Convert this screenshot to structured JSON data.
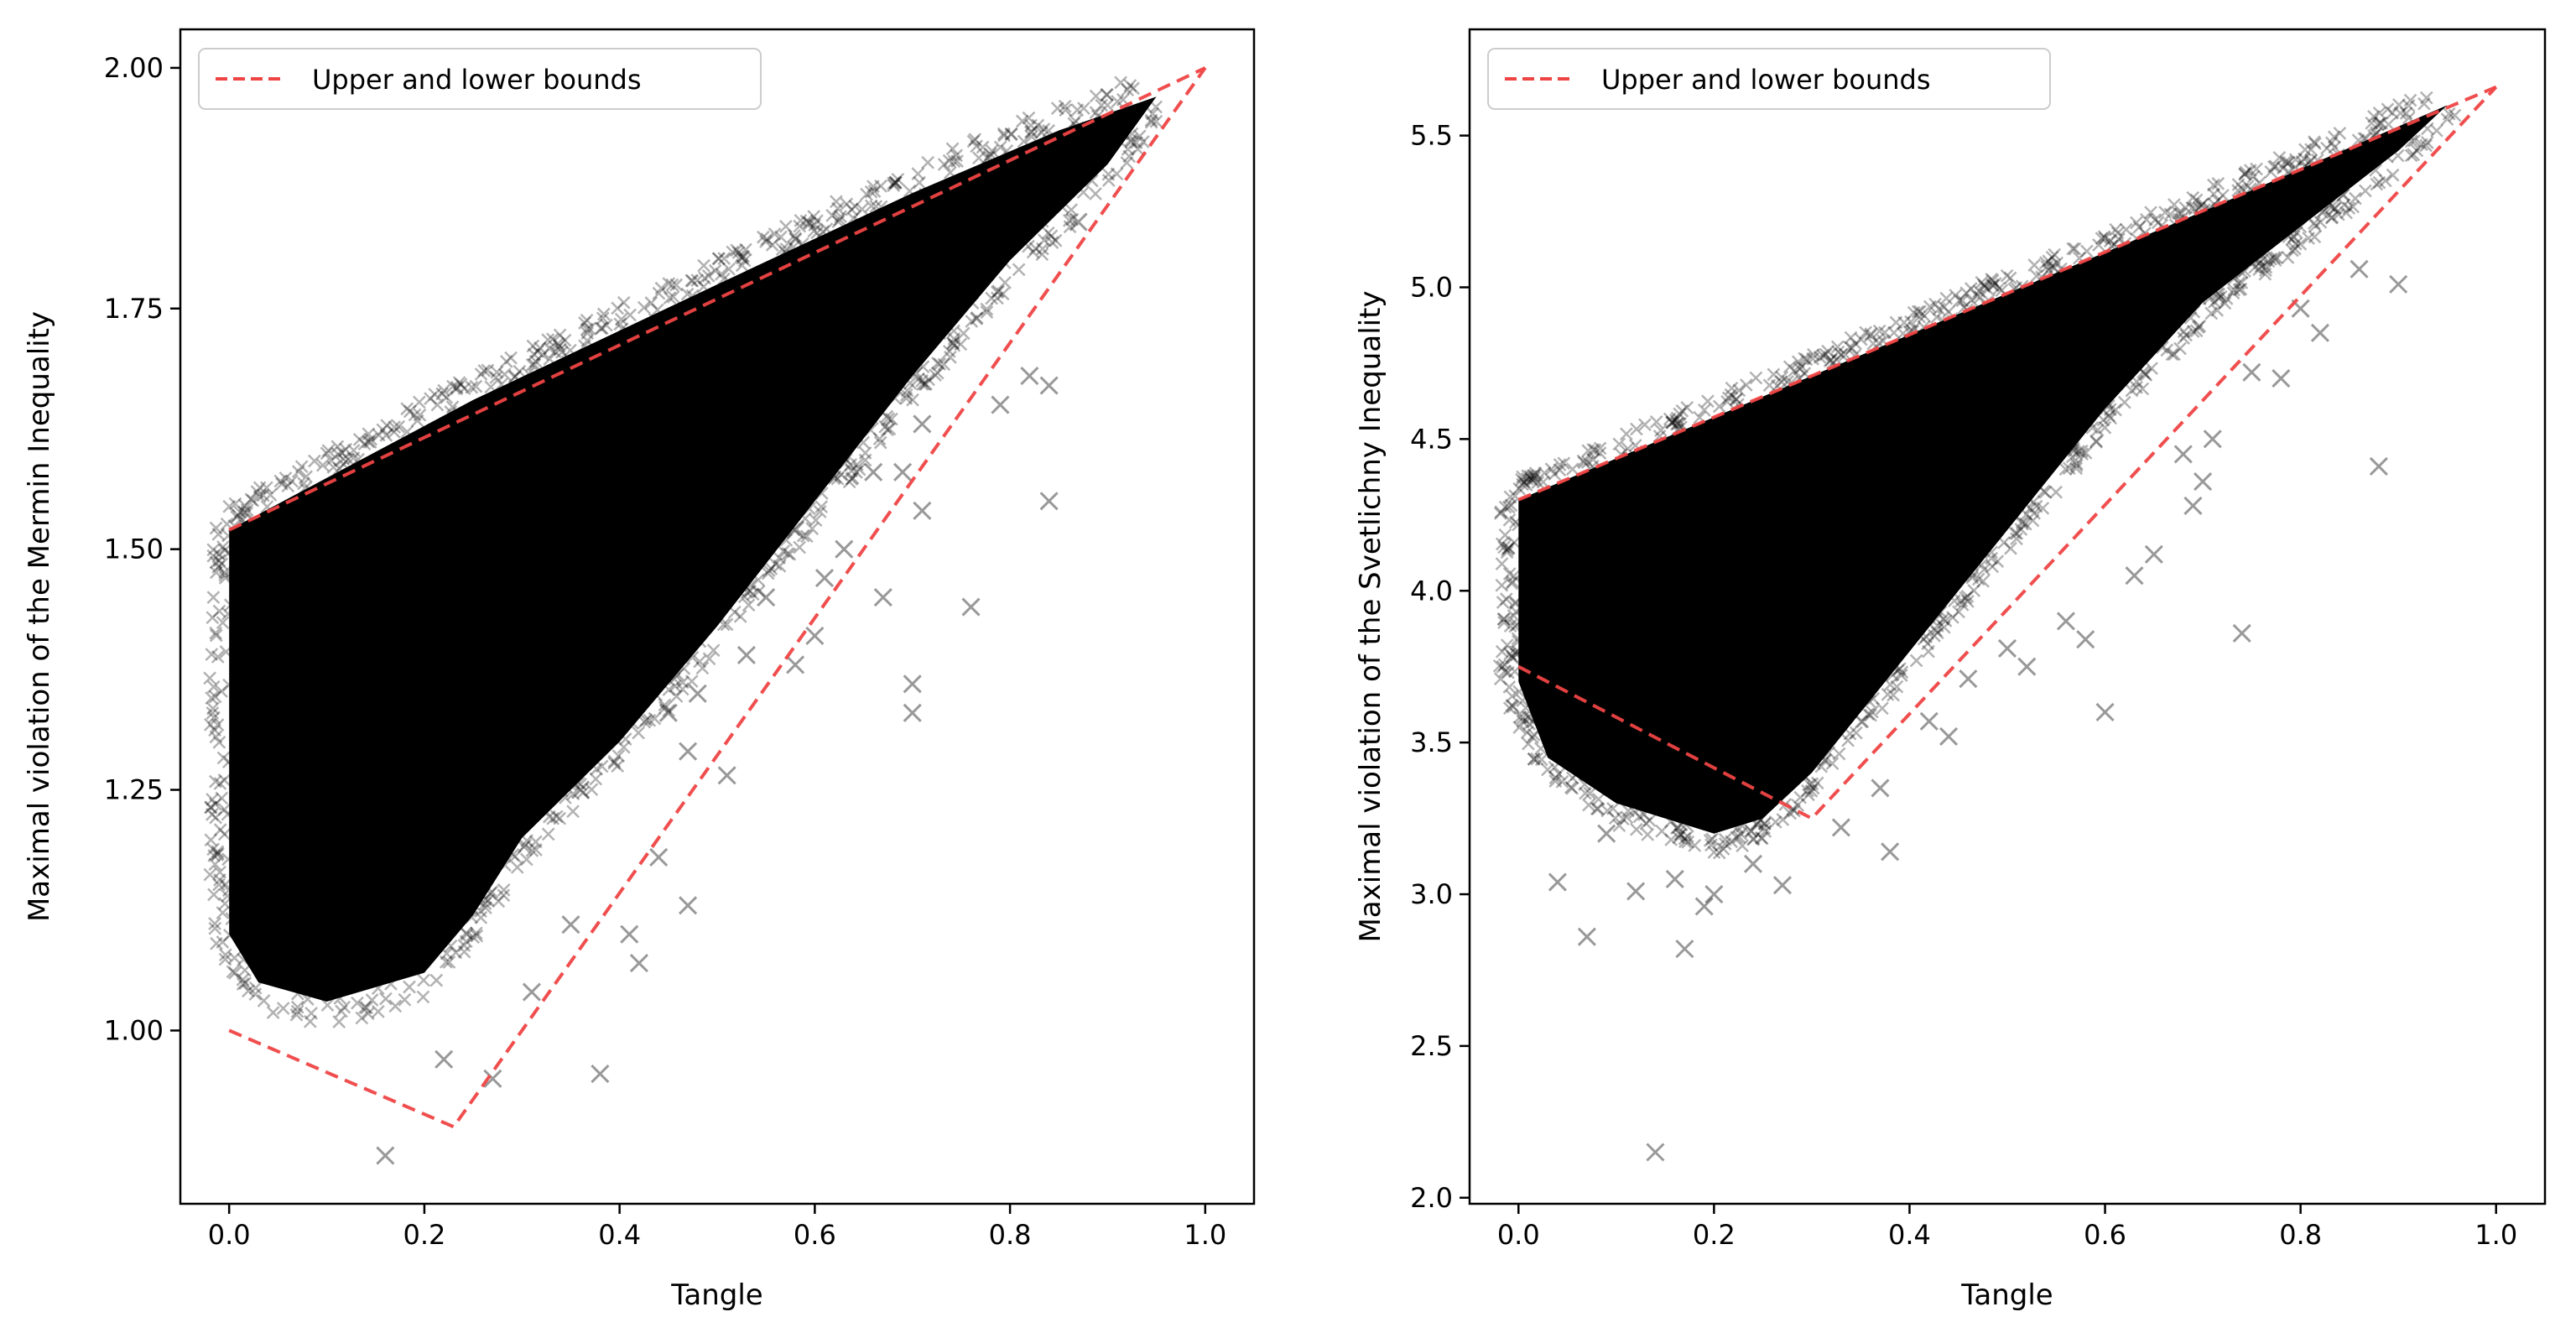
{
  "figure": {
    "description_free": true
  },
  "colors": {
    "bound_line": "#ef4444",
    "points": "#000000",
    "axes": "#000000",
    "background": "#ffffff"
  },
  "chart_data": [
    {
      "type": "scatter",
      "id": "mermin",
      "xlabel": "Tangle",
      "ylabel": "Maximal violation of the Mermin Inequality",
      "xlim": [
        -0.05,
        1.05
      ],
      "ylim": [
        0.82,
        2.04
      ],
      "xticks": [
        0.0,
        0.2,
        0.4,
        0.6,
        0.8,
        1.0
      ],
      "xtick_labels": [
        "0.0",
        "0.2",
        "0.4",
        "0.6",
        "0.8",
        "1.0"
      ],
      "yticks": [
        1.0,
        1.25,
        1.5,
        1.75,
        2.0
      ],
      "ytick_labels": [
        "1.00",
        "1.25",
        "1.50",
        "1.75",
        "2.00"
      ],
      "legend": {
        "label": "Upper and lower bounds",
        "location": "upper-left"
      },
      "bounds": {
        "upper": [
          [
            0.0,
            1.52
          ],
          [
            1.0,
            2.0
          ]
        ],
        "lower": [
          [
            0.0,
            1.0
          ],
          [
            0.23,
            0.9
          ],
          [
            1.0,
            2.0
          ]
        ]
      },
      "dense_region_outline": [
        [
          0.0,
          1.52
        ],
        [
          0.25,
          1.655
        ],
        [
          0.5,
          1.775
        ],
        [
          0.7,
          1.87
        ],
        [
          0.85,
          1.935
        ],
        [
          0.95,
          1.97
        ],
        [
          0.9,
          1.9
        ],
        [
          0.8,
          1.8
        ],
        [
          0.7,
          1.68
        ],
        [
          0.6,
          1.55
        ],
        [
          0.5,
          1.42
        ],
        [
          0.4,
          1.3
        ],
        [
          0.3,
          1.2
        ],
        [
          0.25,
          1.12
        ],
        [
          0.2,
          1.06
        ],
        [
          0.1,
          1.03
        ],
        [
          0.03,
          1.05
        ],
        [
          0.0,
          1.1
        ]
      ],
      "outliers": [
        [
          0.16,
          0.87
        ],
        [
          0.38,
          0.955
        ],
        [
          0.42,
          1.07
        ],
        [
          0.41,
          1.1
        ],
        [
          0.47,
          1.13
        ],
        [
          0.44,
          1.18
        ],
        [
          0.36,
          1.25
        ],
        [
          0.51,
          1.265
        ],
        [
          0.47,
          1.29
        ],
        [
          0.45,
          1.33
        ],
        [
          0.53,
          1.39
        ],
        [
          0.58,
          1.38
        ],
        [
          0.61,
          1.47
        ],
        [
          0.67,
          1.45
        ],
        [
          0.7,
          1.33
        ],
        [
          0.7,
          1.36
        ],
        [
          0.71,
          1.54
        ],
        [
          0.69,
          1.58
        ],
        [
          0.76,
          1.44
        ],
        [
          0.84,
          1.55
        ],
        [
          0.82,
          1.68
        ],
        [
          0.84,
          1.67
        ],
        [
          0.87,
          1.84
        ],
        [
          0.71,
          1.63
        ],
        [
          0.79,
          1.65
        ],
        [
          0.55,
          1.45
        ],
        [
          0.63,
          1.5
        ],
        [
          0.31,
          1.04
        ],
        [
          0.27,
          0.95
        ],
        [
          0.22,
          0.97
        ],
        [
          0.35,
          1.11
        ],
        [
          0.48,
          1.35
        ],
        [
          0.58,
          1.52
        ],
        [
          0.72,
          1.75
        ],
        [
          0.66,
          1.58
        ],
        [
          0.6,
          1.41
        ]
      ]
    },
    {
      "type": "scatter",
      "id": "svetlichny",
      "xlabel": "Tangle",
      "ylabel": "Maximal violation of the Svetlichny Inequality",
      "xlim": [
        -0.05,
        1.05
      ],
      "ylim": [
        1.98,
        5.85
      ],
      "xticks": [
        0.0,
        0.2,
        0.4,
        0.6,
        0.8,
        1.0
      ],
      "xtick_labels": [
        "0.0",
        "0.2",
        "0.4",
        "0.6",
        "0.8",
        "1.0"
      ],
      "yticks": [
        2.0,
        2.5,
        3.0,
        3.5,
        4.0,
        4.5,
        5.0,
        5.5
      ],
      "ytick_labels": [
        "2.0",
        "2.5",
        "3.0",
        "3.5",
        "4.0",
        "4.5",
        "5.0",
        "5.5"
      ],
      "legend": {
        "label": "Upper and lower bounds",
        "location": "upper-left"
      },
      "bounds": {
        "upper": [
          [
            0.0,
            4.3
          ],
          [
            1.0,
            5.66
          ]
        ],
        "lower": [
          [
            0.0,
            3.75
          ],
          [
            0.3,
            3.25
          ],
          [
            1.0,
            5.66
          ]
        ]
      },
      "dense_region_outline": [
        [
          0.0,
          4.3
        ],
        [
          0.25,
          4.64
        ],
        [
          0.5,
          4.98
        ],
        [
          0.7,
          5.25
        ],
        [
          0.85,
          5.46
        ],
        [
          0.95,
          5.6
        ],
        [
          0.9,
          5.45
        ],
        [
          0.8,
          5.2
        ],
        [
          0.7,
          4.95
        ],
        [
          0.6,
          4.6
        ],
        [
          0.5,
          4.2
        ],
        [
          0.4,
          3.8
        ],
        [
          0.3,
          3.4
        ],
        [
          0.25,
          3.25
        ],
        [
          0.2,
          3.2
        ],
        [
          0.1,
          3.3
        ],
        [
          0.03,
          3.45
        ],
        [
          0.0,
          3.7
        ]
      ],
      "outliers": [
        [
          0.14,
          2.15
        ],
        [
          0.17,
          2.82
        ],
        [
          0.07,
          2.86
        ],
        [
          0.19,
          2.96
        ],
        [
          0.12,
          3.01
        ],
        [
          0.2,
          3.0
        ],
        [
          0.27,
          3.03
        ],
        [
          0.04,
          3.04
        ],
        [
          0.38,
          3.14
        ],
        [
          0.33,
          3.22
        ],
        [
          0.37,
          3.35
        ],
        [
          0.44,
          3.52
        ],
        [
          0.42,
          3.57
        ],
        [
          0.46,
          3.71
        ],
        [
          0.52,
          3.75
        ],
        [
          0.5,
          3.81
        ],
        [
          0.58,
          3.84
        ],
        [
          0.6,
          3.6
        ],
        [
          0.56,
          3.9
        ],
        [
          0.65,
          4.12
        ],
        [
          0.69,
          4.28
        ],
        [
          0.7,
          4.36
        ],
        [
          0.71,
          4.5
        ],
        [
          0.74,
          3.86
        ],
        [
          0.68,
          4.45
        ],
        [
          0.75,
          4.72
        ],
        [
          0.8,
          4.93
        ],
        [
          0.88,
          4.41
        ],
        [
          0.9,
          5.01
        ],
        [
          0.86,
          5.06
        ],
        [
          0.82,
          4.85
        ],
        [
          0.78,
          4.7
        ],
        [
          0.63,
          4.05
        ],
        [
          0.09,
          3.2
        ],
        [
          0.16,
          3.05
        ],
        [
          0.24,
          3.1
        ]
      ]
    }
  ]
}
